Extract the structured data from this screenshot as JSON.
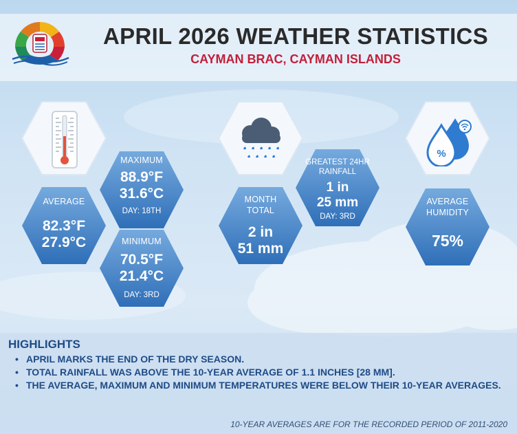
{
  "header": {
    "title": "APRIL 2026 WEATHER STATISTICS",
    "subtitle": "CAYMAN BRAC, CAYMAN ISLANDS"
  },
  "temperature": {
    "icon": "thermometer-icon",
    "average": {
      "label": "AVERAGE",
      "f": "82.3°F",
      "c": "27.9°C"
    },
    "maximum": {
      "label": "MAXIMUM",
      "f": "88.9°F",
      "c": "31.6°C",
      "day": "DAY: 18TH"
    },
    "minimum": {
      "label": "MINIMUM",
      "f": "70.5°F",
      "c": "21.4°C",
      "day": "DAY: 3RD"
    }
  },
  "rainfall": {
    "icon": "rain-cloud-icon",
    "month_total": {
      "label_1": "MONTH",
      "label_2": "TOTAL",
      "inches": "2 in",
      "mm": "51 mm"
    },
    "greatest": {
      "label_1": "GREATEST 24HR",
      "label_2": "RAINFALL",
      "inches": "1 in",
      "mm": "25 mm",
      "day": "DAY: 3RD"
    }
  },
  "humidity": {
    "icon": "humidity-drops-icon",
    "label_1": "AVERAGE",
    "label_2": "HUMIDITY",
    "value": "75%"
  },
  "highlights": {
    "title": "HIGHLIGHTS",
    "items": [
      "APRIL MARKS THE END OF THE DRY SEASON.",
      "TOTAL RAINFALL WAS ABOVE THE 10-YEAR AVERAGE OF 1.1 INCHES [28 MM].",
      "THE AVERAGE, MAXIMUM AND MINIMUM TEMPERATURES WERE BELOW THEIR 10-YEAR AVERAGES."
    ]
  },
  "footnote": "10-YEAR AVERAGES ARE FOR THE RECORDED PERIOD OF 2011-2020",
  "colors": {
    "hex_blue_light": "#6aa0d9",
    "hex_blue_dark": "#2f6fb8",
    "title": "#2a2a2a",
    "subtitle": "#c21f3a",
    "highlight_text": "#1f4b86"
  }
}
